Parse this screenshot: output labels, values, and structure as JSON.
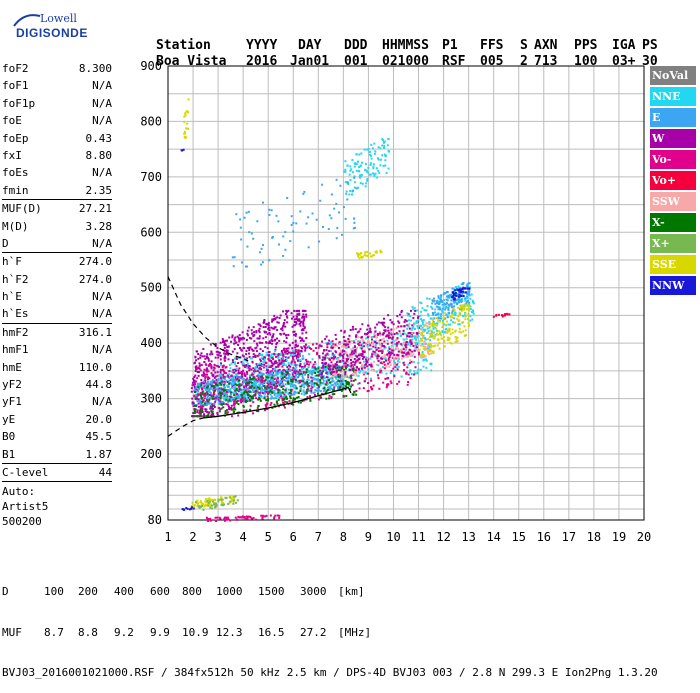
{
  "logo": {
    "line1": "Lowell",
    "line2": "DIGISONDE"
  },
  "header": {
    "labels": [
      "Station",
      "YYYY",
      "DAY",
      "DDD",
      "HHMMSS",
      "P1",
      "FFS",
      "S",
      "AXN",
      "PPS",
      "IGA",
      "PS"
    ],
    "values": [
      "Boa Vista",
      "2016",
      "Jan01",
      "001",
      "021000",
      "RSF",
      "005",
      "2",
      "713",
      "100",
      "03+",
      "30"
    ]
  },
  "params": {
    "group1": [
      {
        "k": "foF2",
        "v": "8.300"
      },
      {
        "k": "foF1",
        "v": "N/A"
      },
      {
        "k": "foF1p",
        "v": "N/A"
      },
      {
        "k": "foE",
        "v": "N/A"
      },
      {
        "k": "foEp",
        "v": "0.43"
      },
      {
        "k": "fxI",
        "v": "8.80"
      },
      {
        "k": "foEs",
        "v": "N/A"
      },
      {
        "k": "fmin",
        "v": "2.35"
      }
    ],
    "group2": [
      {
        "k": "MUF(D)",
        "v": "27.21"
      },
      {
        "k": "M(D)",
        "v": "3.28"
      },
      {
        "k": "D",
        "v": "N/A"
      }
    ],
    "group3": [
      {
        "k": "h`F",
        "v": "274.0"
      },
      {
        "k": "h`F2",
        "v": "274.0"
      },
      {
        "k": "h`E",
        "v": "N/A"
      },
      {
        "k": "h`Es",
        "v": "N/A"
      }
    ],
    "group4": [
      {
        "k": "hmF2",
        "v": "316.1"
      },
      {
        "k": "hmF1",
        "v": "N/A"
      },
      {
        "k": "hmE",
        "v": "110.0"
      },
      {
        "k": "yF2",
        "v": "44.8"
      },
      {
        "k": "yF1",
        "v": "N/A"
      },
      {
        "k": "yE",
        "v": "20.0"
      },
      {
        "k": "B0",
        "v": "45.5"
      },
      {
        "k": "B1",
        "v": "1.87"
      }
    ],
    "group5": [
      {
        "k": "C-level",
        "v": "44"
      }
    ]
  },
  "auto": {
    "line1": "Auto:",
    "line2": "Artist5",
    "line3": "500200"
  },
  "legend": [
    {
      "label": "NoVal",
      "color": "#808080"
    },
    {
      "label": "NNE",
      "color": "#22d8f0"
    },
    {
      "label": "E",
      "color": "#3ca6f2"
    },
    {
      "label": "W",
      "color": "#a800a8"
    },
    {
      "label": "Vo-",
      "color": "#e0008c"
    },
    {
      "label": "Vo+",
      "color": "#f5003c"
    },
    {
      "label": "SSW",
      "color": "#f8a8a8"
    },
    {
      "label": "X-",
      "color": "#007800"
    },
    {
      "label": "X+",
      "color": "#78b850"
    },
    {
      "label": "SSE",
      "color": "#d8d800"
    },
    {
      "label": "NNW",
      "color": "#1818d8"
    }
  ],
  "bottom": {
    "d_label": "D",
    "d_values": [
      "100",
      "200",
      "400",
      "600",
      "800",
      "1000",
      "1500",
      "3000",
      "[km]"
    ],
    "muf_label": "MUF",
    "muf_values": [
      "8.7",
      "8.8",
      "9.2",
      "9.9",
      "10.9",
      "12.3",
      "16.5",
      "27.2",
      "[MHz]"
    ],
    "footer": "BVJ03_2016001021000.RSF / 384fx512h 50 kHz 2.5 km / DPS-4D BVJ03 003 / 2.8 N 299.3 E Ion2Png 1.3.20"
  },
  "chart_data": {
    "type": "scatter",
    "xlim": [
      1,
      20
    ],
    "ylim": [
      80,
      900
    ],
    "x_ticks": [
      1,
      2,
      3,
      4,
      5,
      6,
      7,
      8,
      9,
      10,
      11,
      12,
      13,
      14,
      15,
      16,
      17,
      18,
      19,
      20
    ],
    "y_ticks": [
      80,
      200,
      300,
      400,
      500,
      600,
      700,
      800,
      900
    ],
    "grid": true,
    "legend_position": "right",
    "clusters": [
      {
        "series": "W",
        "xmin": 1.9,
        "xmax": 6.5,
        "ymin": 270,
        "ymax": 460,
        "n": 900
      },
      {
        "series": "E",
        "xmin": 2.0,
        "xmax": 8.0,
        "ymin": 290,
        "ymax": 360,
        "n": 700
      },
      {
        "series": "NNE",
        "xmin": 3.0,
        "xmax": 11.5,
        "ymin": 300,
        "ymax": 420,
        "n": 500
      },
      {
        "series": "Vo-",
        "xmin": 2.0,
        "xmax": 11.0,
        "ymin": 270,
        "ymax": 420,
        "n": 500
      },
      {
        "series": "X-",
        "xmin": 2.0,
        "xmax": 8.5,
        "ymin": 270,
        "ymax": 360,
        "n": 300
      },
      {
        "series": "SSW",
        "xmin": 7.5,
        "xmax": 11.5,
        "ymin": 340,
        "ymax": 440,
        "n": 250
      },
      {
        "series": "W",
        "xmin": 7.0,
        "xmax": 11.0,
        "ymin": 340,
        "ymax": 460,
        "n": 300
      },
      {
        "series": "NNE",
        "xmin": 10.5,
        "xmax": 13.2,
        "ymin": 400,
        "ymax": 510,
        "n": 200
      },
      {
        "series": "E",
        "xmin": 11.5,
        "xmax": 13.0,
        "ymin": 440,
        "ymax": 510,
        "n": 150
      },
      {
        "series": "SSE",
        "xmin": 11.0,
        "xmax": 13.0,
        "ymin": 380,
        "ymax": 470,
        "n": 150
      },
      {
        "series": "NNW",
        "xmin": 12.3,
        "xmax": 13.0,
        "ymin": 480,
        "ymax": 505,
        "n": 40
      },
      {
        "series": "Vo+",
        "xmin": 13.9,
        "xmax": 14.7,
        "ymin": 448,
        "ymax": 455,
        "n": 12
      },
      {
        "series": "NNE",
        "xmin": 8.0,
        "xmax": 9.8,
        "ymin": 670,
        "ymax": 770,
        "n": 120
      },
      {
        "series": "E",
        "xmin": 3.5,
        "xmax": 8.5,
        "ymin": 540,
        "ymax": 700,
        "n": 80
      },
      {
        "series": "SSE",
        "xmin": 8.5,
        "xmax": 9.5,
        "ymin": 555,
        "ymax": 570,
        "n": 30
      },
      {
        "series": "SSE",
        "xmin": 1.6,
        "xmax": 1.8,
        "ymin": 760,
        "ymax": 850,
        "n": 20
      },
      {
        "series": "NNW",
        "xmin": 1.5,
        "xmax": 1.6,
        "ymin": 748,
        "ymax": 752,
        "n": 3
      },
      {
        "series": "SSE",
        "xmin": 1.9,
        "xmax": 3.6,
        "ymin": 105,
        "ymax": 125,
        "n": 70
      },
      {
        "series": "X+",
        "xmin": 2.0,
        "xmax": 3.8,
        "ymin": 100,
        "ymax": 125,
        "n": 40
      },
      {
        "series": "Vo-",
        "xmin": 2.5,
        "xmax": 5.5,
        "ymin": 80,
        "ymax": 90,
        "n": 60
      },
      {
        "series": "NNW",
        "xmin": 1.5,
        "xmax": 2.0,
        "ymin": 100,
        "ymax": 105,
        "n": 10
      }
    ],
    "dashed_curve": [
      [
        1.0,
        520
      ],
      [
        1.5,
        470
      ],
      [
        2.0,
        435
      ],
      [
        2.5,
        410
      ],
      [
        3.0,
        392
      ],
      [
        3.5,
        380
      ],
      [
        4.0,
        372
      ],
      [
        4.2,
        368
      ]
    ],
    "dashed_curve_lower": [
      [
        1.0,
        232
      ],
      [
        1.6,
        250
      ],
      [
        2.0,
        260
      ],
      [
        2.4,
        265
      ]
    ],
    "solid_curve": [
      [
        2.4,
        265
      ],
      [
        3.0,
        268
      ],
      [
        4.0,
        275
      ],
      [
        5.0,
        283
      ],
      [
        6.0,
        293
      ],
      [
        7.0,
        305
      ],
      [
        7.8,
        315
      ],
      [
        8.2,
        320
      ],
      [
        8.3,
        310
      ]
    ]
  }
}
